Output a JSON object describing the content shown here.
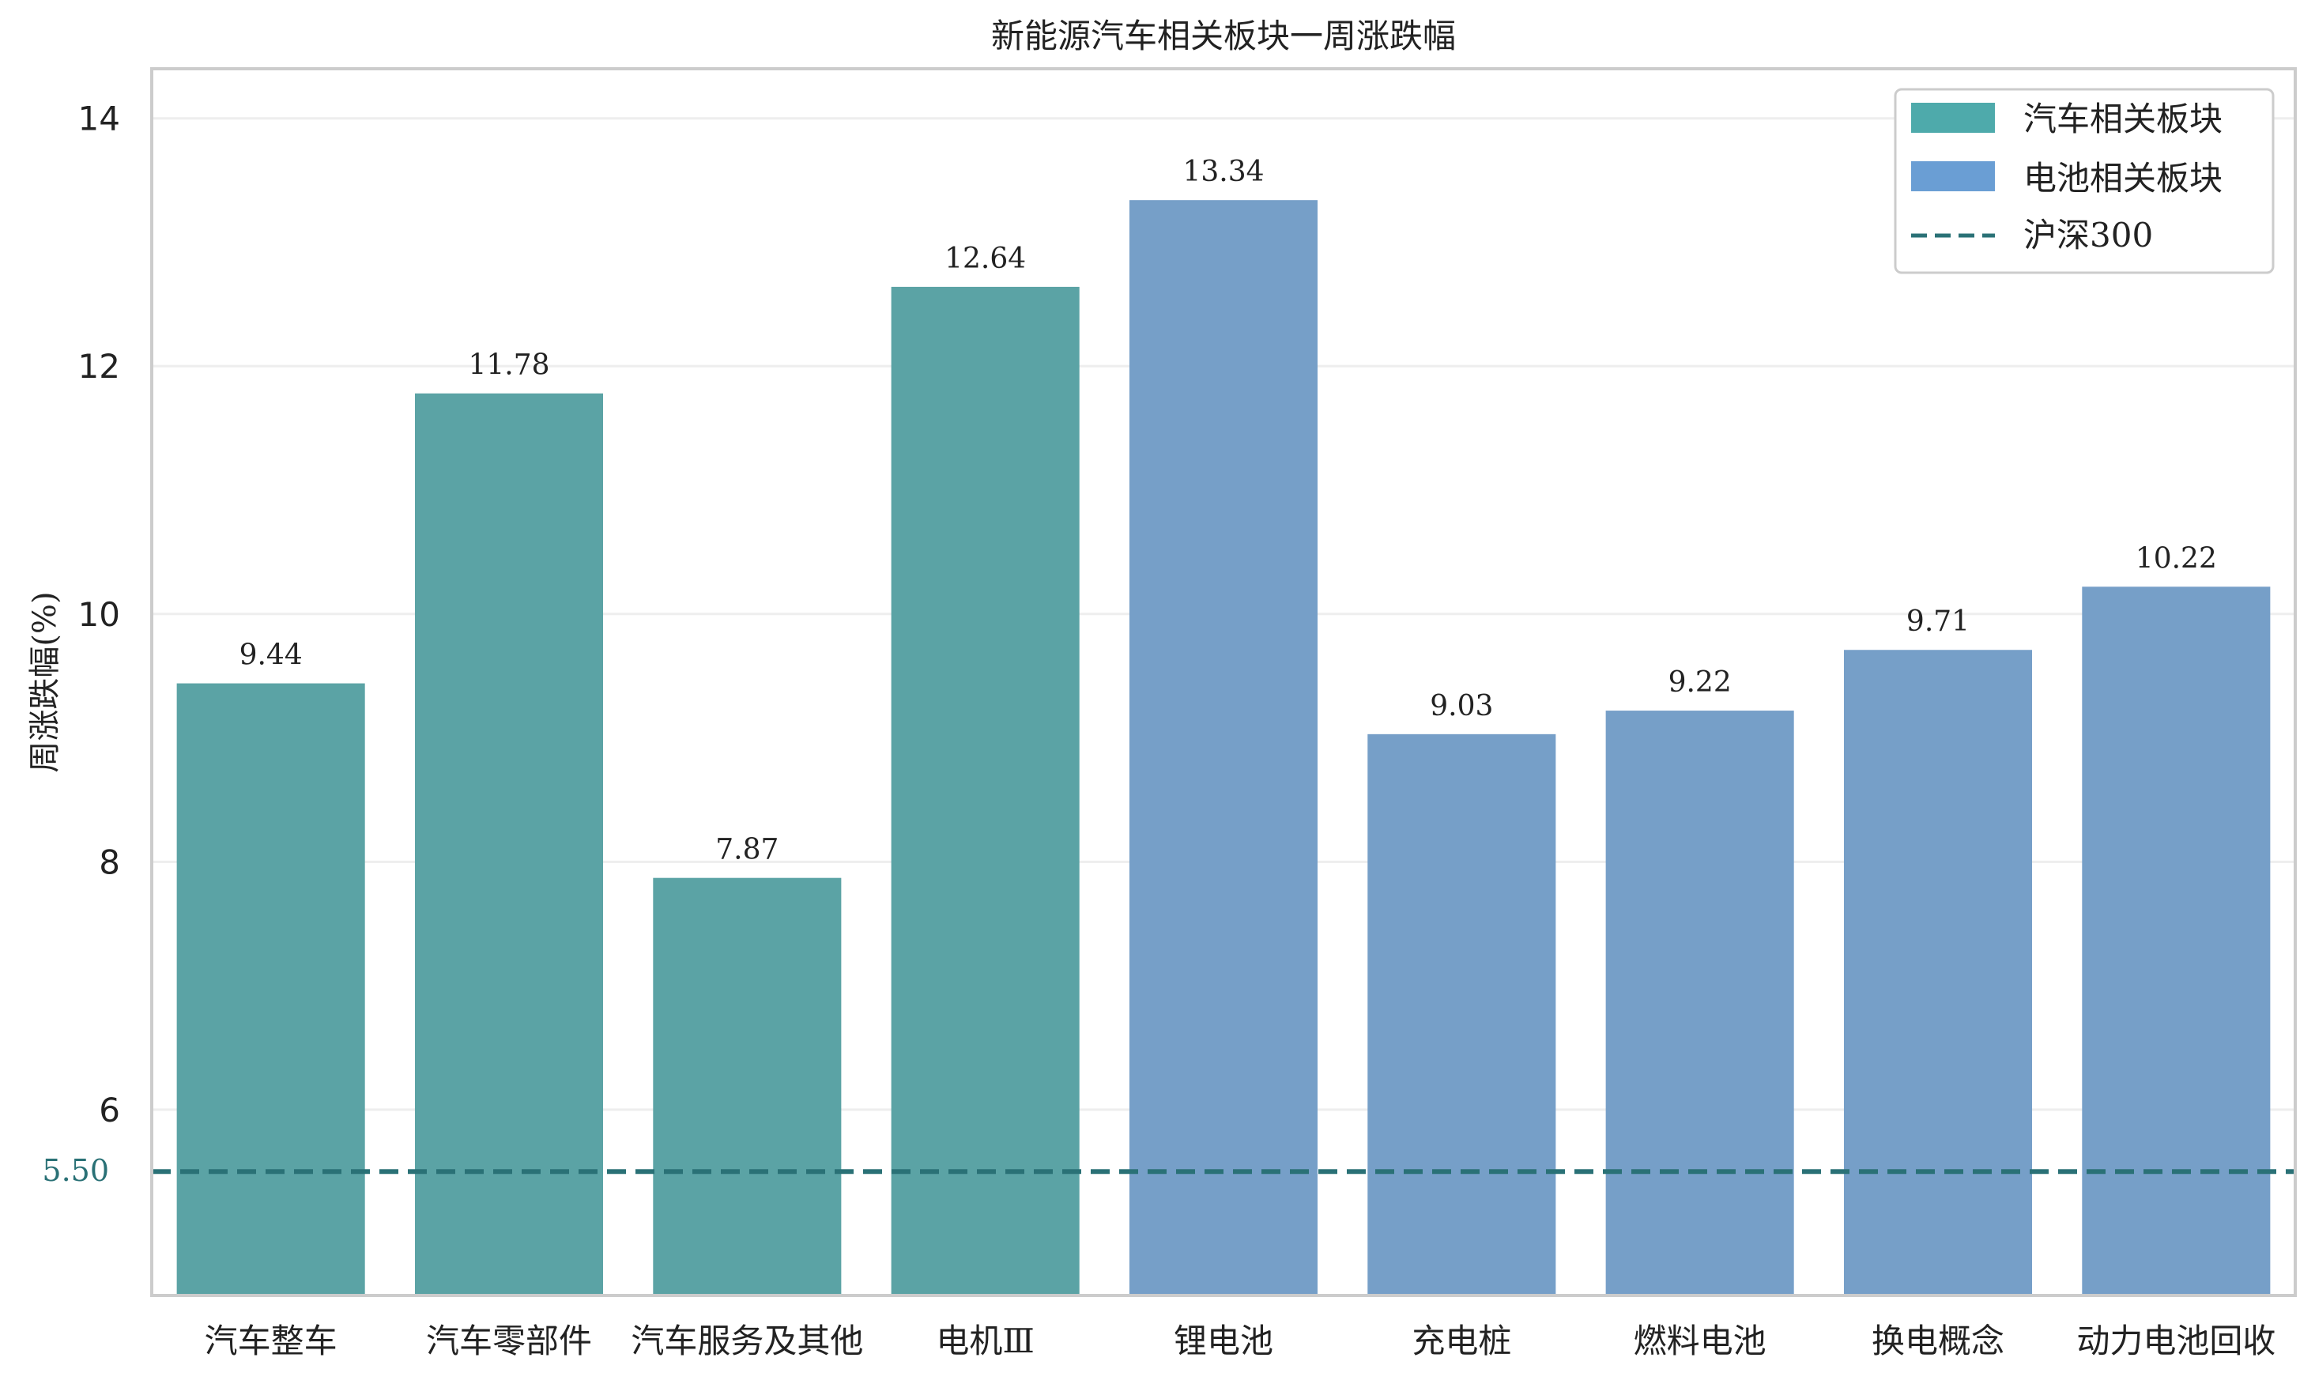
{
  "chart_data": {
    "type": "bar",
    "title": "新能源汽车相关板块一周涨跌幅",
    "xlabel": "",
    "ylabel": "周涨跌幅(%)",
    "ylim": [
      4.5,
      14.4
    ],
    "yticks": [
      6,
      8,
      10,
      12,
      14
    ],
    "grid": true,
    "legend_position": "top-right",
    "categories": [
      "汽车整车",
      "汽车零部件",
      "汽车服务及其他",
      "电机Ⅲ",
      "锂电池",
      "充电桩",
      "燃料电池",
      "换电概念",
      "动力电池回收"
    ],
    "values": [
      9.44,
      11.78,
      7.87,
      12.64,
      13.34,
      9.03,
      9.22,
      9.71,
      10.22
    ],
    "value_labels": [
      "9.44",
      "11.78",
      "7.87",
      "12.64",
      "13.34",
      "9.03",
      "9.22",
      "9.71",
      "10.22"
    ],
    "groups": [
      "汽车相关板块",
      "汽车相关板块",
      "汽车相关板块",
      "汽车相关板块",
      "电池相关板块",
      "电池相关板块",
      "电池相关板块",
      "电池相关板块",
      "电池相关板块"
    ],
    "series": [
      {
        "name": "汽车相关板块",
        "color": "#5BA3A5",
        "legend_color": "#4EAAAB"
      },
      {
        "name": "电池相关板块",
        "color": "#769FC8",
        "legend_color": "#6A9ED4"
      }
    ],
    "reference_line": {
      "name": "沪深300",
      "value": 5.5,
      "label": "5.50",
      "color": "#2A7176",
      "style": "dashed"
    }
  }
}
